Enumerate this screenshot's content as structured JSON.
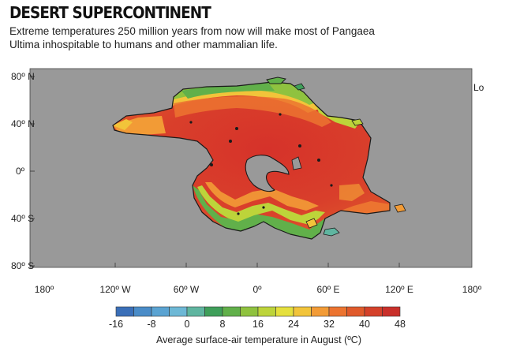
{
  "header": {
    "title": "DESERT SUPERCONTINENT",
    "subtitle": "Extreme temperatures 250 million years from now will make most of Pangaea Ultima inhospitable to humans and other mammalian life."
  },
  "map": {
    "corner_label": "Lo",
    "lat_labels": [
      "80º N",
      "40º N",
      "0º",
      "40º S",
      "80º S"
    ],
    "lon_labels": [
      "180º",
      "120º W",
      "60º W",
      "0º",
      "60º E",
      "120º E",
      "180º"
    ],
    "ocean_color": "#999999",
    "coast_color": "#1a1a1a"
  },
  "legend": {
    "tick_labels": [
      "-16",
      "-8",
      "0",
      "8",
      "16",
      "24",
      "32",
      "40",
      "48"
    ],
    "label": "Average surface-air temperature in August (ºC)",
    "range": [
      -16,
      48
    ],
    "colors": [
      "#3a6fb8",
      "#4a8cc8",
      "#5aa3d2",
      "#6db8d6",
      "#5fb5a0",
      "#3f9f5a",
      "#61b04a",
      "#8fc23f",
      "#bdd43a",
      "#e5e03d",
      "#f2c43a",
      "#f29b36",
      "#ec7430",
      "#e05a2b",
      "#d4412a",
      "#c9302a"
    ]
  }
}
